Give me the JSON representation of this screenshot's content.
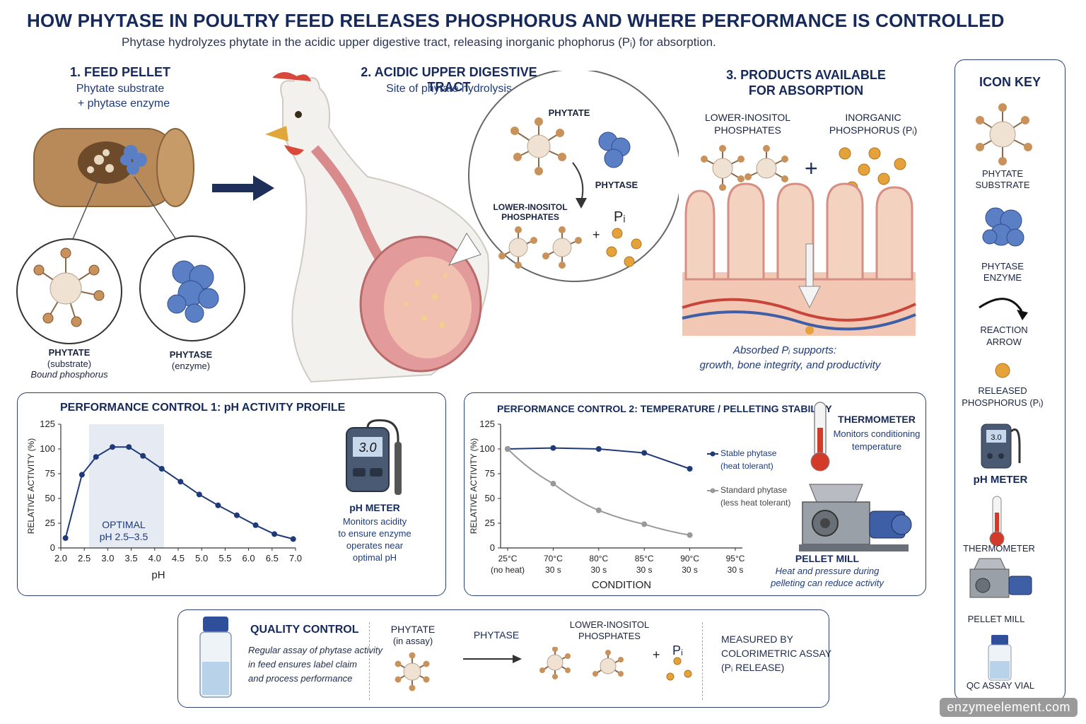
{
  "title": "HOW PHYTASE IN POULTRY FEED RELEASES PHOSPHORUS AND WHERE PERFORMANCE IS CONTROLLED",
  "subtitle": "Phytase hydrolyzes phytate in the acidic upper digestive tract, releasing inorganic phophorus (Pᵢ) for absorption.",
  "section1": {
    "heading": "1. FEED PELLET",
    "sub1": "Phytate substrate",
    "sub2": "+ phytase enzyme",
    "phytate_label": "PHYTATE",
    "phytate_sub": "(substrate)",
    "phytate_note": "Bound phosphorus",
    "phytase_label": "PHYTASE",
    "phytase_sub": "(enzyme)"
  },
  "section2": {
    "heading": "2. ACIDIC UPPER DIGESTIVE TRACT",
    "sub": "Site of phytate hydrolysis",
    "circle_phytate": "PHYTATE",
    "circle_phytase": "PHYTASE",
    "circle_lower1": "LOWER-INOSITOL",
    "circle_lower2": "PHOSPHATES",
    "circle_pi": "Pᵢ",
    "plus": "+"
  },
  "section3": {
    "heading1": "3. PRODUCTS AVAILABLE",
    "heading2": "FOR ABSORPTION",
    "lower1": "LOWER-INOSITOL",
    "lower2": "PHOSPHATES",
    "inorg1": "INORGANIC",
    "inorg2": "PHOSPHORUS (Pᵢ)",
    "plus": "+",
    "absorbed1": "Absorbed Pᵢ supports:",
    "absorbed2": "growth, bone integrity, and productivity"
  },
  "icon_key": {
    "heading": "ICON KEY",
    "items": [
      {
        "l1": "PHYTATE",
        "l2": "SUBSTRATE",
        "icon": "phytate-icon"
      },
      {
        "l1": "PHYTASE",
        "l2": "ENZYME",
        "icon": "enzyme-icon"
      },
      {
        "l1": "REACTION",
        "l2": "ARROW",
        "icon": "reaction-arrow-icon"
      },
      {
        "l1": "RELEASED",
        "l2": "PHOSPHORUS (Pᵢ)",
        "icon": "phosphorus-icon"
      },
      {
        "l1": "pH METER",
        "l2": "",
        "icon": "ph-meter-icon"
      },
      {
        "l1": "THERMOMETER",
        "l2": "",
        "icon": "thermometer-icon"
      },
      {
        "l1": "PELLET MILL",
        "l2": "",
        "icon": "pellet-mill-icon"
      },
      {
        "l1": "QC ASSAY VIAL",
        "l2": "",
        "icon": "vial-icon"
      }
    ]
  },
  "control1": {
    "heading": "PERFORMANCE CONTROL 1:  pH  ACTIVITY PROFILE",
    "optimal1": "OPTIMAL",
    "optimal2": "pH 2.5–3.5",
    "meter_reading": "3.0",
    "meter_title": "pH METER",
    "meter_desc": [
      "Monitors acidity",
      "to ensure enzyme",
      "operates near",
      "optimal pH"
    ]
  },
  "control2": {
    "heading": "PERFORMANCE CONTROL 2: TEMPERATURE / PELLETING STABILITY",
    "legend_stable1": "Stable phytase",
    "legend_stable2": "(heat tolerant)",
    "legend_std1": "Standard phytase",
    "legend_std2": "(less heat tolerant)",
    "thermo_title": "THERMOMETER",
    "thermo_desc1": "Monitors conditioning",
    "thermo_desc2": "temperature",
    "mill_title": "PELLET MILL",
    "mill_desc1": "Heat and pressure during",
    "mill_desc2": "pelleting can reduce activity"
  },
  "qc": {
    "heading": "QUALITY CONTROL",
    "desc": [
      "Regular assay of phytase activity",
      "in feed ensures label claim",
      "and process performance"
    ],
    "phytate1": "PHYTATE",
    "phytate2": "(in assay)",
    "phytase": "PHYTASE",
    "lower1": "LOWER-INOSITOL",
    "lower2": "PHOSPHATES",
    "plus": "+",
    "pi": "Pᵢ",
    "measured1": "MEASURED BY",
    "measured2": "COLORIMETRIC ASSAY",
    "measured3": "(Pᵢ RELEASE)"
  },
  "watermark": "enzymeelement.com",
  "chart_data": [
    {
      "type": "line",
      "title": "PERFORMANCE CONTROL 1:  pH  ACTIVITY PROFILE",
      "xlabel": "pH",
      "ylabel": "RELATIVE ACTIVITY (%)",
      "xlim": [
        2.0,
        7.0
      ],
      "ylim": [
        0,
        125
      ],
      "xticks": [
        "2.0",
        "2.5",
        "3.0",
        "3.5",
        "4.0",
        "4.5",
        "5.0",
        "5.5",
        "6.0",
        "6.5",
        "7.0"
      ],
      "yticks": [
        "0",
        "25",
        "50",
        "75",
        "100",
        "125"
      ],
      "shaded_region": {
        "label": "OPTIMAL pH 2.5–3.5"
      },
      "series": [
        {
          "x": [
            2.1,
            2.45,
            2.75,
            3.1,
            3.45,
            3.75,
            4.15,
            4.55,
            4.95,
            5.35,
            5.75,
            6.15,
            6.55,
            6.95
          ],
          "y": [
            10,
            74,
            92,
            102,
            102,
            93,
            80,
            67,
            54,
            43,
            33,
            23,
            14,
            9
          ]
        }
      ]
    },
    {
      "type": "line",
      "title": "PERFORMANCE CONTROL 2: TEMPERATURE / PELLETING STABILITY",
      "xlabel": "CONDITION",
      "ylabel": "RELATIVE ACTIVITY (%)",
      "ylim": [
        0,
        125
      ],
      "yticks": [
        "0",
        "25",
        "50",
        "75",
        "100",
        "125"
      ],
      "categories": [
        [
          "25°C",
          "(no heat)"
        ],
        [
          "70°C",
          "30 s"
        ],
        [
          "80°C",
          "30 s"
        ],
        [
          "85°C",
          "30 s"
        ],
        [
          "90°C",
          "30 s"
        ],
        [
          "95°C",
          "30 s"
        ]
      ],
      "series": [
        {
          "name": "Stable phytase (heat tolerant)",
          "color": "#1e3a78",
          "values": [
            100,
            101,
            100,
            96,
            80,
            null
          ]
        },
        {
          "name": "Standard phytase (less heat tolerant)",
          "color": "#999999",
          "values": [
            100,
            65,
            38,
            24,
            13,
            null
          ]
        }
      ],
      "legend": "right"
    }
  ]
}
